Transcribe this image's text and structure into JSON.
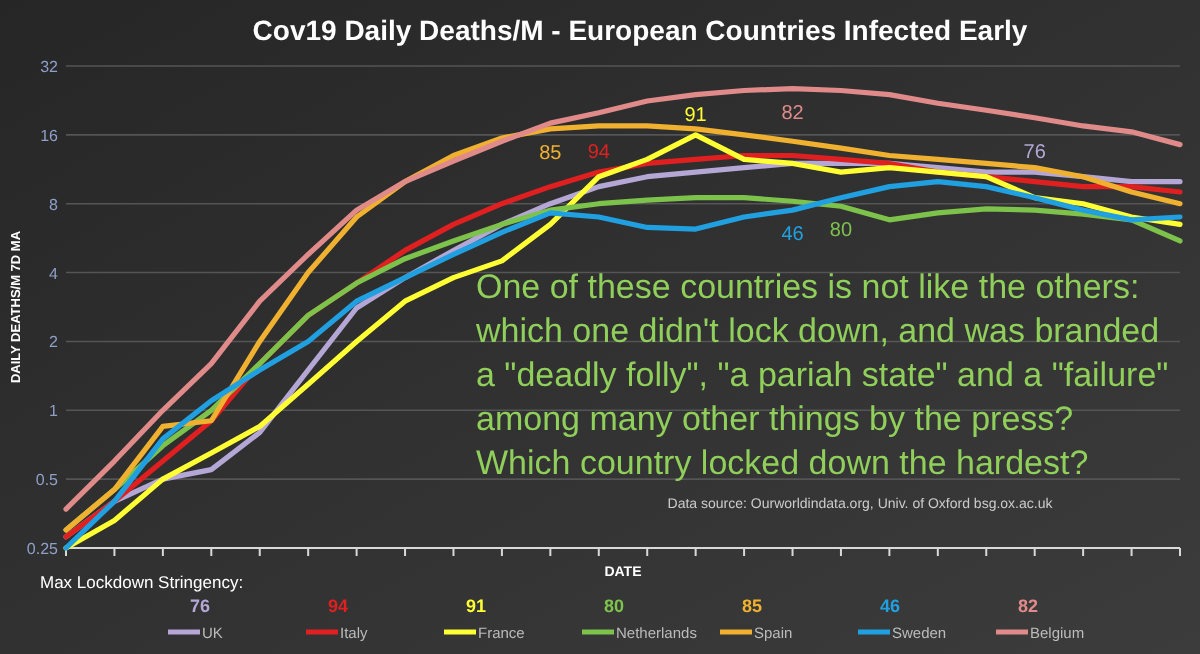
{
  "chart_data": {
    "type": "line",
    "title": "Cov19 Daily Deaths/M - European Countries Infected Early",
    "xlabel": "DATE",
    "ylabel": "DAILY DEATHS/M 7D MA",
    "legend_title": "Max Lockdown Stringency:",
    "legend": "bottom",
    "log": "y",
    "grid": "y",
    "line_style": "solid",
    "categories": [
      null,
      null,
      null,
      null,
      null,
      null,
      null,
      null,
      null,
      null,
      null,
      null,
      null,
      null,
      null,
      null,
      null,
      null,
      null,
      null,
      null,
      null,
      null,
      null
    ],
    "ylim": [
      0.25,
      32
    ],
    "yticks": [
      0.25,
      0.5,
      1,
      2,
      4,
      8,
      16,
      32
    ],
    "series": [
      {
        "name": "UK",
        "color": "#b4a7d6",
        "values": [
          0.28,
          0.4,
          0.5,
          0.55,
          0.8,
          1.5,
          2.8,
          3.8,
          5,
          6.5,
          8,
          9.5,
          10.5,
          11,
          11.5,
          12,
          12,
          12,
          11.5,
          11,
          11,
          10.5,
          10,
          10
        ]
      },
      {
        "name": "Italy",
        "color": "#e02020",
        "values": [
          0.28,
          0.4,
          0.6,
          0.9,
          1.6,
          2.6,
          3.6,
          5,
          6.5,
          8,
          9.5,
          11,
          12,
          12.5,
          13,
          13,
          12.5,
          12,
          11,
          10.5,
          10,
          9.5,
          9.5,
          9
        ]
      },
      {
        "name": "France",
        "color": "#ffff33",
        "values": [
          0.25,
          0.33,
          0.5,
          0.65,
          0.85,
          1.3,
          2,
          3,
          3.8,
          4.5,
          6.5,
          10.5,
          12.5,
          16,
          12.5,
          12,
          11,
          11.5,
          11,
          10.5,
          8.5,
          8,
          7,
          6.5
        ]
      },
      {
        "name": "Netherlands",
        "color": "#7dc24b",
        "values": [
          0.3,
          0.45,
          0.7,
          1,
          1.6,
          2.6,
          3.6,
          4.6,
          5.5,
          6.5,
          7.5,
          8,
          8.3,
          8.5,
          8.5,
          8.2,
          7.8,
          6.8,
          7.3,
          7.6,
          7.5,
          7.2,
          6.8,
          5.5
        ]
      },
      {
        "name": "Spain",
        "color": "#f0b030",
        "values": [
          0.3,
          0.45,
          0.85,
          0.9,
          2,
          4,
          7,
          10,
          13,
          15.5,
          17,
          17.5,
          17.5,
          17,
          16,
          15,
          14,
          13,
          12.5,
          12,
          11.5,
          10.5,
          9,
          8
        ]
      },
      {
        "name": "Sweden",
        "color": "#20a0e0",
        "values": [
          0.25,
          0.4,
          0.75,
          1.1,
          1.5,
          2,
          3,
          3.8,
          4.8,
          6,
          7.3,
          7,
          6.3,
          6.2,
          7,
          7.5,
          8.5,
          9.5,
          10,
          9.5,
          8.5,
          7.5,
          6.8,
          7
        ]
      },
      {
        "name": "Belgium",
        "color": "#e08a8a",
        "values": [
          0.37,
          0.6,
          1,
          1.6,
          3,
          4.8,
          7.5,
          10,
          12.3,
          15,
          18,
          20,
          22.5,
          24,
          25,
          25.5,
          25,
          24,
          22,
          20.5,
          19,
          17.5,
          16.5,
          14.5
        ]
      }
    ],
    "annotations": [
      "76",
      "94",
      "91",
      "80",
      "85",
      "46",
      "82",
      "One of these countries is not like the others: which one didn't lock down, and was branded a \"deadly folly\", \"a pariah state\" and a \"failure\" among many other things by the press? Which country locked down the hardest?",
      "Data source: Ourworldindata.org, Univ. of Oxford bsg.ox.ac.uk"
    ]
  }
}
